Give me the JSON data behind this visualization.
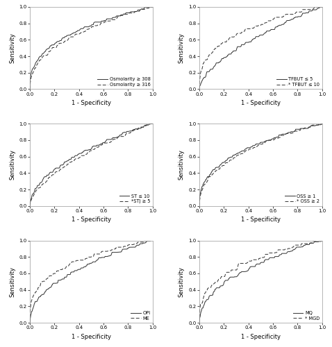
{
  "panels": [
    {
      "legend_labels": [
        "Osmolarity ≥ 308",
        "- - Osmolarity ≥ 316"
      ],
      "line_styles": [
        "-",
        "--"
      ],
      "xlabel": "1 - Specificity",
      "ylabel": "Sensitivity",
      "auc1": 0.73,
      "auc2": 0.7,
      "seed1": 42,
      "seed2": 1042,
      "noise1": 0.018,
      "noise2": 0.018,
      "n1": 400,
      "n2": 400
    },
    {
      "legend_labels": [
        "TFBUT ≤ 5",
        "- - * TFBUT ≤ 10"
      ],
      "line_styles": [
        "-",
        "--"
      ],
      "xlabel": "1 - Specificity",
      "ylabel": "Sensitivity",
      "auc1": 0.62,
      "auc2": 0.74,
      "seed1": 10,
      "seed2": 1010,
      "noise1": 0.022,
      "noise2": 0.022,
      "n1": 400,
      "n2": 400
    },
    {
      "legend_labels": [
        "ST ≤ 10",
        "- - *STj ≥ 5"
      ],
      "line_styles": [
        "-",
        "--"
      ],
      "xlabel": "1 - Specificity",
      "ylabel": "Sensitivity",
      "auc1": 0.66,
      "auc2": 0.63,
      "seed1": 20,
      "seed2": 1020,
      "noise1": 0.02,
      "noise2": 0.02,
      "n1": 400,
      "n2": 400
    },
    {
      "legend_labels": [
        "OSS ≥ 1",
        "- - * OSS ≥ 2"
      ],
      "line_styles": [
        "-",
        "--"
      ],
      "xlabel": "1 - Specificity",
      "ylabel": "Sensitivity",
      "auc1": 0.72,
      "auc2": 0.7,
      "seed1": 30,
      "seed2": 1030,
      "noise1": 0.018,
      "noise2": 0.018,
      "n1": 400,
      "n2": 400
    },
    {
      "legend_labels": [
        "OPI",
        "- - ME"
      ],
      "line_styles": [
        "-",
        "--"
      ],
      "xlabel": "1 - Specificity",
      "ylabel": "Sensitivity",
      "auc1": 0.68,
      "auc2": 0.76,
      "seed1": 50,
      "seed2": 1050,
      "noise1": 0.022,
      "noise2": 0.025,
      "n1": 400,
      "n2": 400
    },
    {
      "legend_labels": [
        "MQ",
        "- - * MGD"
      ],
      "line_styles": [
        "-",
        "--"
      ],
      "xlabel": "1 - Specificity",
      "ylabel": "Sensitivity",
      "auc1": 0.68,
      "auc2": 0.74,
      "seed1": 60,
      "seed2": 1060,
      "noise1": 0.03,
      "noise2": 0.035,
      "n1": 300,
      "n2": 300
    }
  ],
  "tick_fontsize": 5,
  "label_fontsize": 6,
  "legend_fontsize": 4.8,
  "linewidth": 0.7,
  "bg_color": "#ffffff",
  "line_color": "#333333"
}
